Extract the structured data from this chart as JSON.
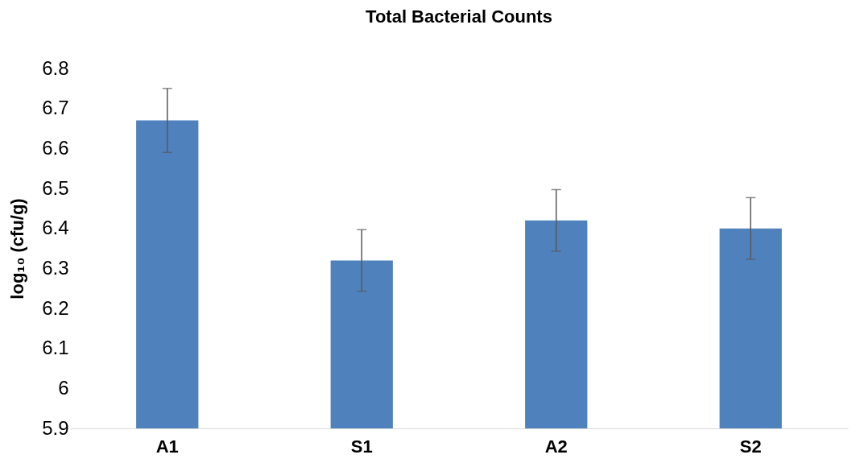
{
  "chart_data": {
    "type": "bar",
    "title": "Total Bacterial Counts",
    "ylabel": "log₁₀ (cfu/g)",
    "categories": [
      "A1",
      "S1",
      "A2",
      "S2"
    ],
    "color": "#4f81bd",
    "values": [
      6.67,
      6.32,
      6.42,
      6.4
    ],
    "errors": [
      0.08,
      0.077,
      0.077,
      0.077
    ],
    "ylim": [
      5.9,
      6.8
    ],
    "yticks": [
      5.9,
      6,
      6.1,
      6.2,
      6.3,
      6.4,
      6.5,
      6.6,
      6.7,
      6.8
    ],
    "grid": false
  }
}
